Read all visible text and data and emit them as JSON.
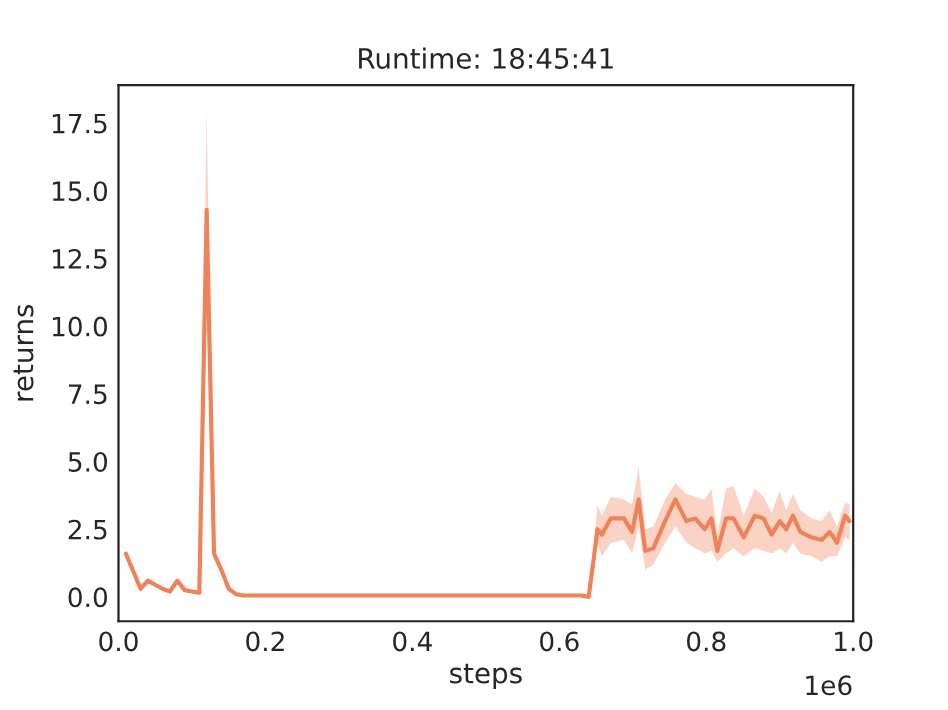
{
  "chart_data": {
    "type": "line",
    "title": "Runtime: 18:45:41",
    "xlabel": "steps",
    "ylabel": "returns",
    "x": [
      0.01,
      0.03,
      0.04,
      0.05,
      0.06,
      0.07,
      0.08,
      0.09,
      0.1,
      0.11,
      0.12,
      0.13,
      0.14,
      0.15,
      0.16,
      0.17,
      0.2,
      0.3,
      0.4,
      0.5,
      0.6,
      0.63,
      0.64,
      0.652,
      0.658,
      0.67,
      0.688,
      0.699,
      0.708,
      0.717,
      0.728,
      0.744,
      0.758,
      0.773,
      0.785,
      0.798,
      0.807,
      0.815,
      0.827,
      0.837,
      0.851,
      0.866,
      0.878,
      0.889,
      0.9,
      0.909,
      0.918,
      0.928,
      0.943,
      0.957,
      0.968,
      0.978,
      0.989,
      0.995
    ],
    "series": [
      {
        "color": "#f0825a",
        "values": [
          1.6,
          0.3,
          0.6,
          0.45,
          0.3,
          0.2,
          0.6,
          0.25,
          0.2,
          0.15,
          14.3,
          1.6,
          1.0,
          0.3,
          0.1,
          0.05,
          0.05,
          0.05,
          0.05,
          0.05,
          0.05,
          0.05,
          0.0,
          2.5,
          2.3,
          2.9,
          2.9,
          2.4,
          3.6,
          1.7,
          1.8,
          2.8,
          3.6,
          2.8,
          2.9,
          2.5,
          2.9,
          1.7,
          2.9,
          2.9,
          2.2,
          3.0,
          2.9,
          2.3,
          2.8,
          2.5,
          3.0,
          2.4,
          2.2,
          2.1,
          2.4,
          2.0,
          3.0,
          2.8
        ],
        "lower": [
          1.6,
          0.3,
          0.6,
          0.45,
          0.3,
          0.2,
          0.6,
          0.25,
          0.2,
          0.15,
          10.5,
          1.4,
          1.0,
          0.3,
          0.1,
          0.05,
          0.05,
          0.05,
          0.05,
          0.05,
          0.05,
          0.05,
          0.0,
          1.9,
          1.5,
          2.0,
          2.1,
          1.6,
          2.6,
          1.0,
          1.2,
          2.0,
          2.6,
          2.0,
          1.8,
          1.6,
          1.7,
          1.3,
          1.6,
          1.8,
          1.5,
          1.8,
          1.7,
          1.6,
          1.8,
          1.6,
          2.0,
          1.6,
          1.5,
          1.3,
          1.5,
          1.5,
          2.2,
          2.1
        ],
        "upper": [
          1.6,
          0.3,
          0.6,
          0.45,
          0.3,
          0.2,
          0.6,
          0.25,
          0.2,
          0.15,
          17.9,
          1.8,
          1.0,
          0.3,
          0.1,
          0.05,
          0.05,
          0.05,
          0.05,
          0.05,
          0.05,
          0.05,
          0.0,
          3.4,
          3.0,
          3.7,
          3.6,
          3.4,
          4.8,
          2.5,
          2.6,
          3.6,
          4.2,
          3.8,
          3.7,
          3.6,
          4.0,
          2.3,
          4.0,
          4.1,
          3.0,
          4.0,
          3.7,
          3.1,
          3.9,
          3.2,
          3.8,
          3.2,
          2.9,
          2.8,
          3.2,
          2.6,
          3.5,
          3.4
        ]
      }
    ],
    "xlim": [
      0,
      1.0
    ],
    "xticks": [
      {
        "value": 0,
        "label": "0.0"
      },
      0.2,
      0.4,
      0.6,
      0.8,
      {
        "value": 1.0,
        "label": "1.0"
      }
    ],
    "ylim": [
      -0.9,
      18.9
    ],
    "yticks": [
      {
        "value": 0,
        "label": "0.0"
      },
      {
        "value": 2.5,
        "label": "2.5"
      },
      {
        "value": 5,
        "label": "5.0"
      },
      {
        "value": 7.5,
        "label": "7.5"
      },
      {
        "value": 10,
        "label": "10.0"
      },
      {
        "value": 12.5,
        "label": "12.5"
      },
      {
        "value": 15,
        "label": "15.0"
      },
      {
        "value": 17.5,
        "label": "17.5"
      }
    ],
    "annotations": [
      "1e6"
    ],
    "grid": false
  }
}
